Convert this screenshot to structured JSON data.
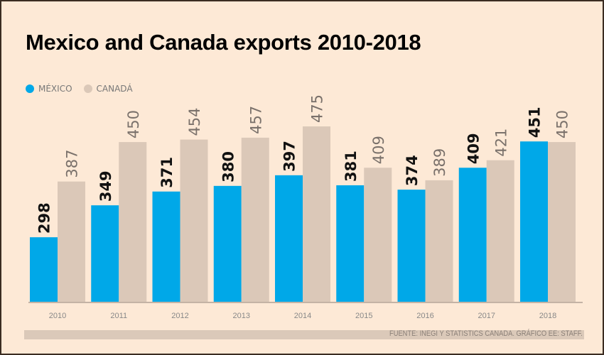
{
  "chart_data": {
    "type": "bar",
    "title": "Mexico and Canada exports 2010-2018",
    "categories": [
      "2010",
      "2011",
      "2012",
      "2013",
      "2014",
      "2015",
      "2016",
      "2017",
      "2018"
    ],
    "series": [
      {
        "name": "MÉXICO",
        "color": "#00a8e8",
        "values": [
          298,
          349,
          371,
          380,
          397,
          381,
          374,
          409,
          451
        ]
      },
      {
        "name": "CANADÁ",
        "color": "#dbc8b8",
        "values": [
          387,
          450,
          454,
          457,
          475,
          409,
          389,
          421,
          450
        ]
      }
    ],
    "ylim": [
      195,
      500
    ],
    "grid": false,
    "legend": "top-left",
    "source": "FUENTE: INEGI Y STATISTICS CANADA. GRÁFICO EE: STAFF."
  }
}
